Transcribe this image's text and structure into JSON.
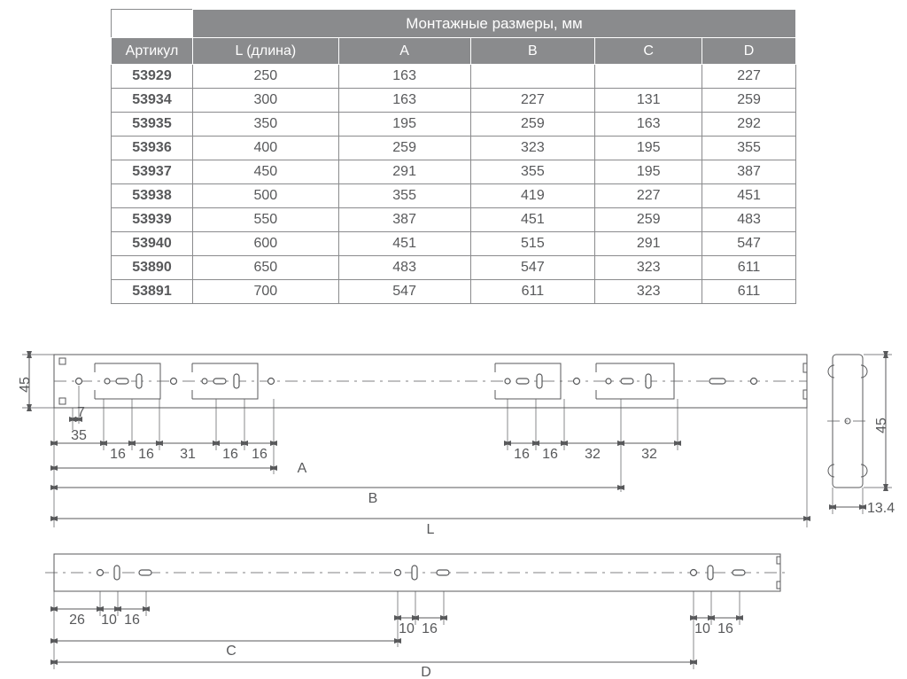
{
  "table": {
    "title": "Монтажные размеры, мм",
    "headers": [
      "Артикул",
      "L (длина)",
      "A",
      "B",
      "C",
      "D"
    ],
    "rows": [
      [
        "53929",
        "250",
        "163",
        "",
        "",
        "227"
      ],
      [
        "53934",
        "300",
        "163",
        "227",
        "131",
        "259"
      ],
      [
        "53935",
        "350",
        "195",
        "259",
        "163",
        "292"
      ],
      [
        "53936",
        "400",
        "259",
        "323",
        "195",
        "355"
      ],
      [
        "53937",
        "450",
        "291",
        "355",
        "195",
        "387"
      ],
      [
        "53938",
        "500",
        "355",
        "419",
        "227",
        "451"
      ],
      [
        "53939",
        "550",
        "387",
        "451",
        "259",
        "483"
      ],
      [
        "53940",
        "600",
        "451",
        "515",
        "291",
        "547"
      ],
      [
        "53890",
        "650",
        "483",
        "547",
        "323",
        "611"
      ],
      [
        "53891",
        "700",
        "547",
        "611",
        "323",
        "611"
      ]
    ]
  },
  "top_drawing": {
    "height_label": "45",
    "dims_left": {
      "d7": "7",
      "d35": "35",
      "d16a": "16",
      "d16b": "16",
      "d31": "31",
      "d16c": "16",
      "d16d": "16"
    },
    "dims_right": {
      "d16e": "16",
      "d16f": "16",
      "d32a": "32",
      "d32b": "32"
    },
    "span_labels": {
      "A": "A",
      "B": "B",
      "L": "L"
    }
  },
  "bottom_drawing": {
    "dims_left": {
      "d26": "26",
      "d10a": "10",
      "d16a": "16"
    },
    "dims_mid": {
      "d10b": "10",
      "d16b": "16"
    },
    "dims_right": {
      "d10c": "10",
      "d16c": "16"
    },
    "span_labels": {
      "C": "C",
      "D": "D"
    }
  },
  "side_profile": {
    "height": "45",
    "width": "13.4"
  },
  "colors": {
    "line": "#58595b",
    "header_bg": "#8a8b8d",
    "page_bg": "#ffffff"
  }
}
